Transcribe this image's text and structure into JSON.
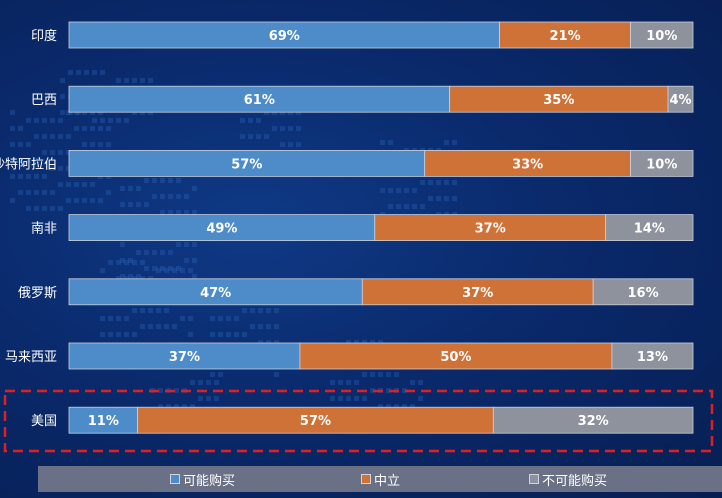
{
  "chart_data": {
    "type": "bar",
    "orientation": "horizontal",
    "stacked": true,
    "percent": true,
    "categories": [
      "印度",
      "巴西",
      "沙特阿拉伯",
      "南非",
      "俄罗斯",
      "马来西亚",
      "美国"
    ],
    "series": [
      {
        "name": "可能购买",
        "color": "#4d8cc8",
        "values": [
          69,
          61,
          57,
          49,
          47,
          37,
          11
        ],
        "labels": [
          "69%",
          "61%",
          "57%",
          "49%",
          "47%",
          "37%",
          "11%"
        ]
      },
      {
        "name": "中立",
        "color": "#cf7238",
        "values": [
          21,
          35,
          33,
          37,
          37,
          50,
          57
        ],
        "labels": [
          "21%",
          "35%",
          "33%",
          "37%",
          "37%",
          "50%",
          "57%"
        ]
      },
      {
        "name": "不可能购买",
        "color": "#8e929c",
        "values": [
          10,
          4,
          10,
          14,
          16,
          13,
          32
        ],
        "labels": [
          "10%",
          "4%",
          "10%",
          "14%",
          "16%",
          "13%",
          "32%"
        ]
      }
    ],
    "xlim": [
      0,
      100
    ],
    "grid": false,
    "legend_position": "bottom",
    "highlight": {
      "category": "美国",
      "style": "red-dashed-box"
    }
  }
}
